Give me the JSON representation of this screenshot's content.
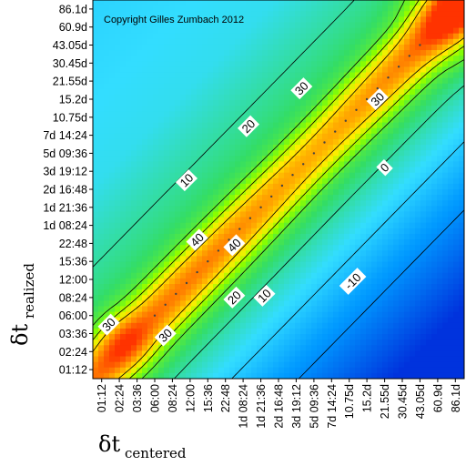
{
  "chart_data": {
    "type": "heatmap",
    "title": "",
    "copyright": "Copyright Gilles Zumbach 2012",
    "xlabel": {
      "symbol": "δt",
      "subscript": "centered"
    },
    "ylabel": {
      "symbol": "δt",
      "subscript": "realized"
    },
    "x_ticks": [
      "01:12",
      "02:24",
      "03:36",
      "06:00",
      "08:24",
      "12:00",
      "15:36",
      "22:48",
      "1d 08:24",
      "1d 21:36",
      "2d 16:48",
      "3d 19:12",
      "5d 09:36",
      "7d 14:24",
      "10.75d",
      "15.2d",
      "21.55d",
      "30.45d",
      "43.05d",
      "60.9d",
      "86.1d"
    ],
    "y_ticks": [
      "86.1d",
      "60.9d",
      "43.05d",
      "30.45d",
      "21.55d",
      "15.2d",
      "10.75d",
      "7d 14:24",
      "5d 09:36",
      "3d 19:12",
      "2d 16:48",
      "1d 21:36",
      "1d 08:24",
      "22:48",
      "15:36",
      "12:00",
      "08:24",
      "06:00",
      "03:36",
      "02:24",
      "01:12"
    ],
    "contour_levels": [
      -10,
      0,
      10,
      20,
      30,
      40
    ],
    "contour_labels": [
      {
        "text": "10",
        "x_index": 4.8,
        "y_index": 10.5
      },
      {
        "text": "20",
        "x_index": 8.3,
        "y_index": 13.5
      },
      {
        "text": "30",
        "x_index": 11.3,
        "y_index": 15.6
      },
      {
        "text": "30",
        "x_index": 15.6,
        "y_index": 15.0
      },
      {
        "text": "0",
        "x_index": 16.0,
        "y_index": 11.2
      },
      {
        "text": "40",
        "x_index": 5.4,
        "y_index": 7.2
      },
      {
        "text": "40",
        "x_index": 7.5,
        "y_index": 6.9
      },
      {
        "text": "20",
        "x_index": 7.5,
        "y_index": 4.0
      },
      {
        "text": "10",
        "x_index": 9.2,
        "y_index": 4.1
      },
      {
        "text": "-10",
        "x_index": 14.2,
        "y_index": 4.9
      },
      {
        "text": "30",
        "x_index": 0.4,
        "y_index": 2.5
      },
      {
        "text": "30",
        "x_index": 3.6,
        "y_index": 1.9
      }
    ],
    "colorscale": [
      "#0033dd",
      "#0099ff",
      "#33ddff",
      "#33dd66",
      "#88ff00",
      "#ffee00",
      "#ff9900",
      "#ff3300"
    ],
    "value_range": [
      -20,
      60
    ]
  }
}
